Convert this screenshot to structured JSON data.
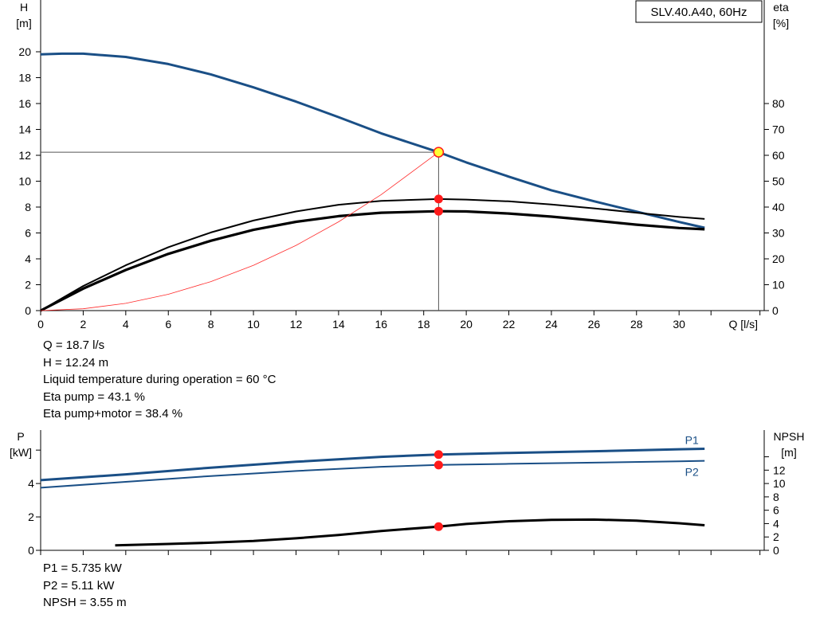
{
  "legend_box": "SLV.40.A40, 60Hz",
  "info_top": [
    "Q = 18.7 l/s",
    "H = 12.24 m",
    "Liquid temperature during operation = 60 °C",
    "Eta pump = 43.1 %",
    "Eta pump+motor = 38.4 %"
  ],
  "info_bottom": [
    "P1 = 5.735 kW",
    "P2 = 5.11 kW",
    "NPSH = 3.55 m"
  ],
  "colors": {
    "head": "#1a4f86",
    "eta": "#000000",
    "system": "#ff2a2a",
    "power": "#1a4f86",
    "npsh": "#000000",
    "marker": "#ff1a1a",
    "op_marker": "#ffff33",
    "axis": "#000000",
    "grid": "#000000"
  },
  "chart_data": [
    {
      "type": "line",
      "xlabel": "Q [l/s]",
      "ylabel": "H\n[m]",
      "y2label": "eta\n[%]",
      "xlim": [
        0,
        34
      ],
      "ylim": [
        0,
        24
      ],
      "y2lim": [
        0,
        120
      ],
      "xticks": [
        0,
        2,
        4,
        6,
        8,
        10,
        12,
        14,
        16,
        18,
        20,
        22,
        24,
        26,
        28,
        30
      ],
      "yticks": [
        0,
        2,
        4,
        6,
        8,
        10,
        12,
        14,
        16,
        18,
        20
      ],
      "y2ticks": [
        0,
        10,
        20,
        30,
        40,
        50,
        60,
        70,
        80
      ],
      "series": [
        {
          "id": "head",
          "axis": "left",
          "x": [
            0,
            1,
            2,
            4,
            6,
            8,
            10,
            12,
            14,
            16,
            18.7,
            20,
            22,
            24,
            26,
            28,
            30,
            31.2
          ],
          "y": [
            19.8,
            19.85,
            19.85,
            19.6,
            19.05,
            18.25,
            17.25,
            16.15,
            14.95,
            13.7,
            12.24,
            11.45,
            10.35,
            9.3,
            8.45,
            7.65,
            6.85,
            6.4
          ]
        },
        {
          "id": "eta_pump",
          "axis": "right",
          "x": [
            0,
            2,
            4,
            6,
            8,
            10,
            12,
            14,
            16,
            18.7,
            20,
            22,
            24,
            26,
            28,
            30,
            31.2
          ],
          "y": [
            0,
            9.5,
            17.5,
            24.5,
            30.2,
            34.8,
            38.3,
            40.9,
            42.4,
            43.1,
            42.9,
            42.2,
            41.0,
            39.5,
            37.8,
            36.2,
            35.4
          ]
        },
        {
          "id": "eta_pump_motor",
          "axis": "right",
          "x": [
            0,
            2,
            4,
            6,
            8,
            10,
            12,
            14,
            16,
            18.7,
            20,
            22,
            24,
            26,
            28,
            30,
            31.2
          ],
          "y": [
            0,
            8.5,
            15.7,
            21.9,
            27.0,
            31.2,
            34.3,
            36.5,
            37.8,
            38.4,
            38.3,
            37.5,
            36.3,
            34.8,
            33.2,
            31.9,
            31.4
          ]
        },
        {
          "id": "system_curve",
          "axis": "left",
          "x": [
            0,
            2,
            4,
            6,
            8,
            10,
            12,
            14,
            16,
            18.7
          ],
          "y": [
            0,
            0.14,
            0.56,
            1.26,
            2.24,
            3.5,
            5.04,
            6.86,
            8.96,
            12.24
          ]
        }
      ],
      "operating_point": {
        "Q": 18.7,
        "H": 12.24,
        "eta_pump": 43.1,
        "eta_pump_motor": 38.4
      }
    },
    {
      "type": "line",
      "ylabel": "P\n[kW]",
      "y2label": "NPSH\n[m]",
      "xlim": [
        0,
        34
      ],
      "ylim": [
        0,
        7.2
      ],
      "y2lim": [
        0,
        18
      ],
      "yticks": [
        0,
        2,
        4
      ],
      "y2ticks": [
        0,
        2,
        4,
        6,
        8,
        10,
        12
      ],
      "series": [
        {
          "id": "P1",
          "name": "P1",
          "axis": "left",
          "x": [
            0,
            4,
            8,
            12,
            16,
            18.7,
            22,
            26,
            30,
            31.2
          ],
          "y": [
            4.2,
            4.55,
            4.95,
            5.3,
            5.6,
            5.735,
            5.83,
            5.93,
            6.05,
            6.08
          ]
        },
        {
          "id": "P2",
          "name": "P2",
          "axis": "left",
          "x": [
            0,
            4,
            8,
            12,
            16,
            18.7,
            22,
            26,
            30,
            31.2
          ],
          "y": [
            3.75,
            4.1,
            4.45,
            4.75,
            5.0,
            5.11,
            5.18,
            5.25,
            5.33,
            5.36
          ]
        },
        {
          "id": "NPSH",
          "axis": "right",
          "x": [
            3.5,
            6,
            8,
            10,
            12,
            14,
            16,
            18.7,
            20,
            22,
            24,
            26,
            28,
            30,
            31.2
          ],
          "y": [
            0.75,
            0.95,
            1.15,
            1.4,
            1.8,
            2.3,
            2.9,
            3.55,
            3.95,
            4.35,
            4.55,
            4.6,
            4.45,
            4.05,
            3.75
          ]
        }
      ],
      "operating_point": {
        "Q": 18.7,
        "P1": 5.735,
        "P2": 5.11,
        "NPSH": 3.55
      }
    }
  ]
}
